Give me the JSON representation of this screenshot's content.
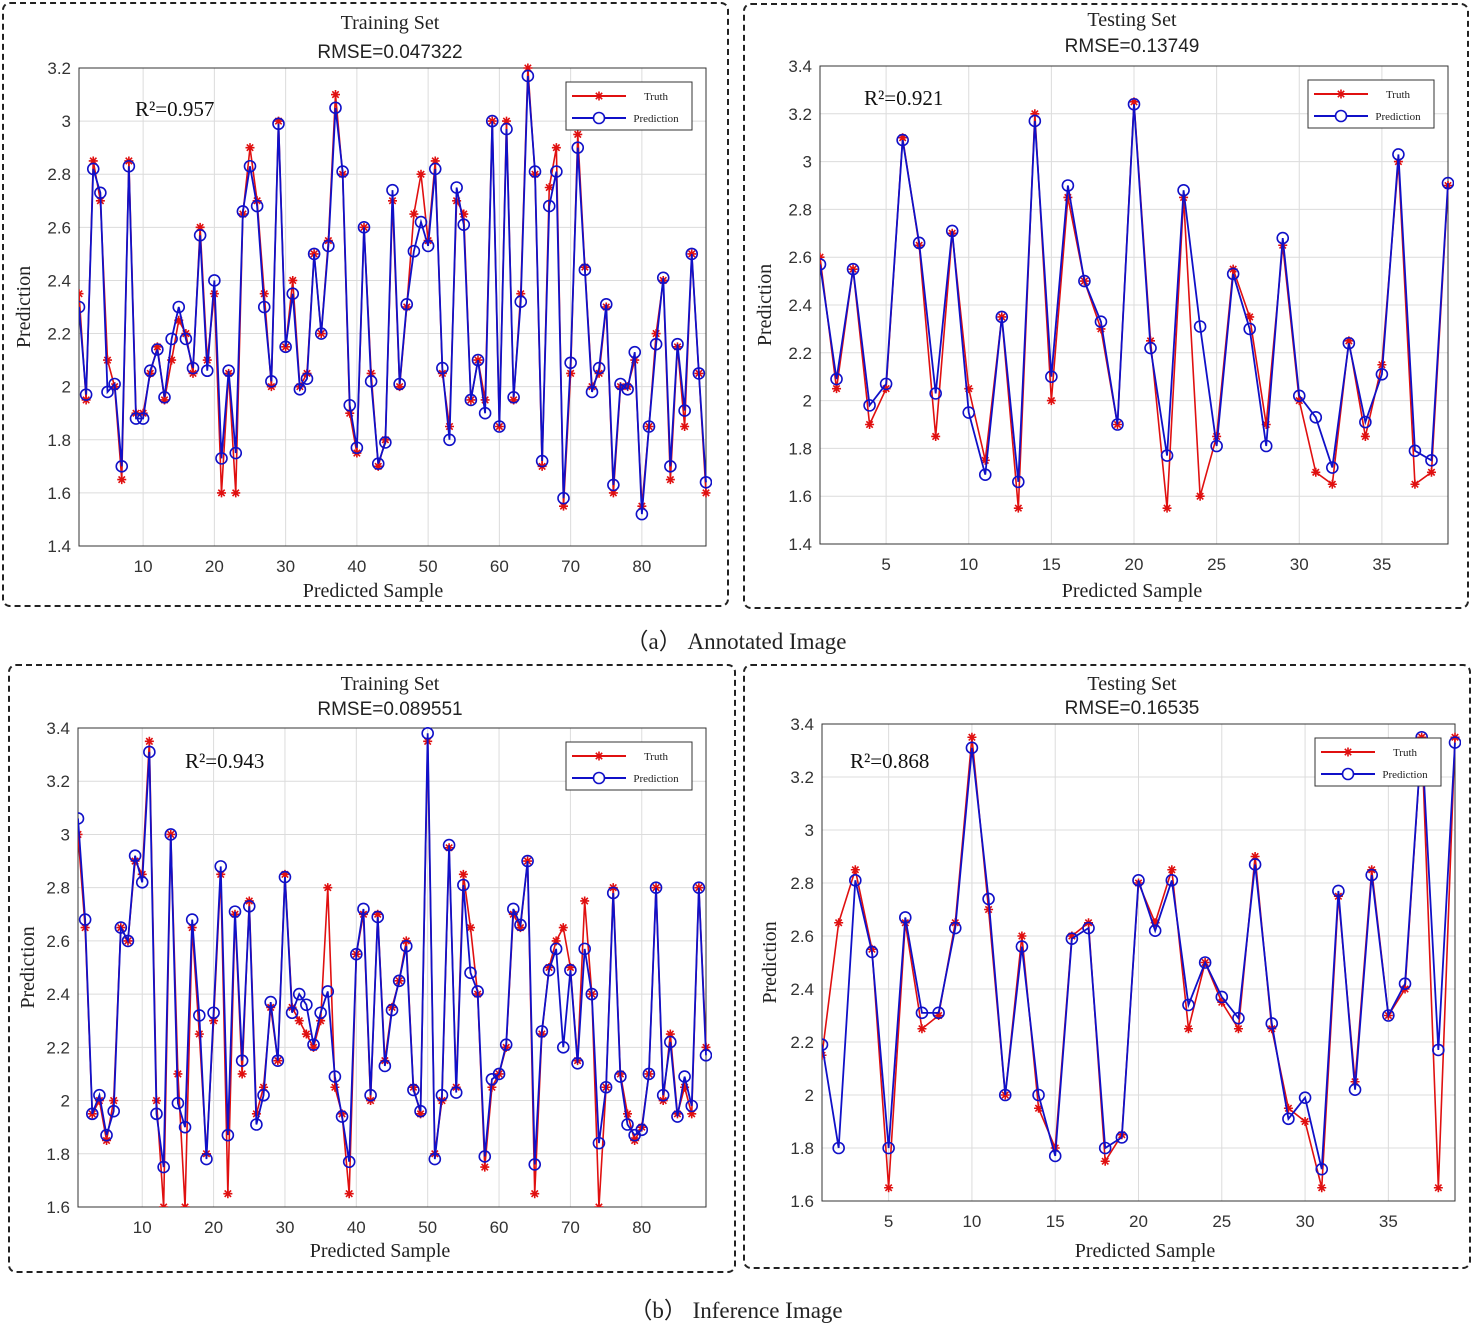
{
  "captions": {
    "a": "（a） Annotated Image",
    "b": "（b） Inference Image"
  },
  "colors": {
    "truth": "#e01010",
    "prediction": "#1010c8",
    "grid": "#dcdcdc"
  },
  "chart_data": [
    {
      "type": "line",
      "title": "Training Set",
      "subtitle": "RMSE=0.047322",
      "annotation": "R²=0.957",
      "xlabel": "Predicted Sample",
      "ylabel": "Prediction",
      "xlim": [
        1,
        89
      ],
      "ylim": [
        1.4,
        3.2
      ],
      "xticks": [
        10,
        20,
        30,
        40,
        50,
        60,
        70,
        80
      ],
      "yticks": [
        1.4,
        1.6,
        1.8,
        2,
        2.2,
        2.4,
        2.6,
        2.8,
        3,
        3.2
      ],
      "grid": true,
      "legend": "top-right",
      "series": [
        {
          "name": "Truth",
          "marker": "star",
          "values": [
            2.35,
            1.95,
            2.85,
            2.7,
            2.1,
            2.0,
            1.65,
            2.85,
            1.9,
            1.9,
            2.05,
            2.15,
            1.95,
            2.1,
            2.25,
            2.2,
            2.05,
            2.6,
            2.1,
            2.35,
            1.6,
            2.05,
            1.6,
            2.65,
            2.9,
            2.7,
            2.35,
            2.0,
            3.0,
            2.15,
            2.4,
            2.0,
            2.05,
            2.5,
            2.2,
            2.55,
            3.1,
            2.8,
            1.9,
            1.75,
            2.6,
            2.05,
            1.7,
            1.8,
            2.7,
            2.0,
            2.3,
            2.65,
            2.8,
            2.55,
            2.85,
            2.05,
            1.85,
            2.7,
            2.65,
            1.95,
            2.1,
            1.95,
            3.0,
            1.85,
            3.0,
            1.95,
            2.35,
            3.2,
            2.8,
            1.7,
            2.75,
            2.9,
            1.55,
            2.05,
            2.95,
            2.45,
            2.0,
            2.05,
            2.3,
            1.6,
            2.0,
            2.0,
            2.1,
            1.55,
            1.85,
            2.2,
            2.4,
            1.65,
            2.15,
            1.85,
            2.5,
            2.05,
            1.6
          ]
        },
        {
          "name": "Prediction",
          "marker": "circle",
          "values": [
            2.3,
            1.97,
            2.82,
            2.73,
            1.98,
            2.01,
            1.7,
            2.83,
            1.88,
            1.88,
            2.06,
            2.14,
            1.96,
            2.18,
            2.3,
            2.18,
            2.07,
            2.57,
            2.06,
            2.4,
            1.73,
            2.06,
            1.75,
            2.66,
            2.83,
            2.68,
            2.3,
            2.02,
            2.99,
            2.15,
            2.35,
            1.99,
            2.03,
            2.5,
            2.2,
            2.53,
            3.05,
            2.81,
            1.93,
            1.77,
            2.6,
            2.02,
            1.71,
            1.79,
            2.74,
            2.01,
            2.31,
            2.51,
            2.62,
            2.53,
            2.82,
            2.07,
            1.8,
            2.75,
            2.61,
            1.95,
            2.1,
            1.9,
            3.0,
            1.85,
            2.97,
            1.96,
            2.32,
            3.17,
            2.81,
            1.72,
            2.68,
            2.81,
            1.58,
            2.09,
            2.9,
            2.44,
            1.98,
            2.07,
            2.31,
            1.63,
            2.01,
            1.99,
            2.13,
            1.52,
            1.85,
            2.16,
            2.41,
            1.7,
            2.16,
            1.91,
            2.5,
            2.05,
            1.64
          ]
        }
      ]
    },
    {
      "type": "line",
      "title": "Testing Set",
      "subtitle": "RMSE=0.13749",
      "annotation": "R²=0.921",
      "xlabel": "Predicted Sample",
      "ylabel": "Prediction",
      "xlim": [
        1,
        39
      ],
      "ylim": [
        1.4,
        3.4
      ],
      "xticks": [
        5,
        10,
        15,
        20,
        25,
        30,
        35
      ],
      "yticks": [
        1.4,
        1.6,
        1.8,
        2,
        2.2,
        2.4,
        2.6,
        2.8,
        3,
        3.2,
        3.4
      ],
      "grid": true,
      "legend": "top-right",
      "series": [
        {
          "name": "Truth",
          "marker": "star",
          "values": [
            2.6,
            2.05,
            2.55,
            1.9,
            2.05,
            3.1,
            2.65,
            1.85,
            2.7,
            2.05,
            1.75,
            2.35,
            1.55,
            3.2,
            2.0,
            2.85,
            2.5,
            2.3,
            1.9,
            3.25,
            2.25,
            1.55,
            2.85,
            1.6,
            1.85,
            2.55,
            2.35,
            1.9,
            2.65,
            2.0,
            1.7,
            1.65,
            2.25,
            1.85,
            2.15,
            3.0,
            1.65,
            1.7,
            2.9
          ]
        },
        {
          "name": "Prediction",
          "marker": "circle",
          "values": [
            2.57,
            2.09,
            2.55,
            1.98,
            2.07,
            3.09,
            2.66,
            2.03,
            2.71,
            1.95,
            1.69,
            2.35,
            1.66,
            3.17,
            2.1,
            2.9,
            2.5,
            2.33,
            1.9,
            3.24,
            2.22,
            1.77,
            2.88,
            2.31,
            1.81,
            2.53,
            2.3,
            1.81,
            2.68,
            2.02,
            1.93,
            1.72,
            2.24,
            1.91,
            2.11,
            3.03,
            1.79,
            1.75,
            2.91
          ]
        }
      ]
    },
    {
      "type": "line",
      "title": "Training Set",
      "subtitle": "RMSE=0.089551",
      "annotation": "R²=0.943",
      "xlabel": "Predicted Sample",
      "ylabel": "Prediction",
      "xlim": [
        1,
        89
      ],
      "ylim": [
        1.6,
        3.4
      ],
      "xticks": [
        10,
        20,
        30,
        40,
        50,
        60,
        70,
        80
      ],
      "yticks": [
        1.6,
        1.8,
        2,
        2.2,
        2.4,
        2.6,
        2.8,
        3,
        3.2,
        3.4
      ],
      "grid": true,
      "legend": "top-right",
      "series": [
        {
          "name": "Truth",
          "marker": "star",
          "values": [
            3.0,
            2.65,
            1.95,
            2.0,
            1.85,
            2.0,
            2.65,
            2.6,
            2.9,
            2.85,
            3.35,
            2.0,
            1.6,
            3.0,
            2.1,
            1.6,
            2.65,
            2.25,
            1.8,
            2.3,
            2.85,
            1.65,
            2.7,
            2.1,
            2.75,
            1.95,
            2.05,
            2.35,
            2.15,
            2.85,
            2.35,
            2.3,
            2.25,
            2.2,
            2.3,
            2.8,
            2.05,
            1.95,
            1.65,
            2.55,
            2.7,
            2.0,
            2.7,
            2.15,
            2.35,
            2.45,
            2.6,
            2.05,
            1.95,
            3.35,
            1.8,
            2.0,
            2.95,
            2.05,
            2.85,
            2.65,
            2.4,
            1.75,
            2.05,
            2.1,
            2.2,
            2.7,
            2.65,
            2.9,
            1.65,
            2.25,
            2.5,
            2.6,
            2.65,
            2.5,
            2.15,
            2.75,
            2.4,
            1.6,
            2.05,
            2.8,
            2.1,
            1.95,
            1.85,
            1.9,
            2.1,
            2.8,
            2.0,
            2.25,
            1.95,
            2.05,
            1.95,
            2.8,
            2.2
          ]
        },
        {
          "name": "Prediction",
          "marker": "circle",
          "values": [
            3.06,
            2.68,
            1.95,
            2.02,
            1.87,
            1.96,
            2.65,
            2.6,
            2.92,
            2.82,
            3.31,
            1.95,
            1.75,
            3.0,
            1.99,
            1.9,
            2.68,
            2.32,
            1.78,
            2.33,
            2.88,
            1.87,
            2.71,
            2.15,
            2.73,
            1.91,
            2.02,
            2.37,
            2.15,
            2.84,
            2.33,
            2.4,
            2.36,
            2.21,
            2.33,
            2.41,
            2.09,
            1.94,
            1.77,
            2.55,
            2.72,
            2.02,
            2.69,
            2.13,
            2.34,
            2.45,
            2.58,
            2.04,
            1.96,
            3.38,
            1.78,
            2.02,
            2.96,
            2.03,
            2.81,
            2.48,
            2.41,
            1.79,
            2.08,
            2.1,
            2.21,
            2.72,
            2.66,
            2.9,
            1.76,
            2.26,
            2.49,
            2.57,
            2.2,
            2.49,
            2.14,
            2.57,
            2.4,
            1.84,
            2.05,
            2.78,
            2.09,
            1.91,
            1.87,
            1.89,
            2.1,
            2.8,
            2.02,
            2.22,
            1.94,
            2.09,
            1.98,
            2.8,
            2.17
          ]
        }
      ]
    },
    {
      "type": "line",
      "title": "Testing Set",
      "subtitle": "RMSE=0.16535",
      "annotation": "R²=0.868",
      "xlabel": "Predicted Sample",
      "ylabel": "Prediction",
      "xlim": [
        1,
        39
      ],
      "ylim": [
        1.6,
        3.4
      ],
      "xticks": [
        5,
        10,
        15,
        20,
        25,
        30,
        35
      ],
      "yticks": [
        1.6,
        1.8,
        2,
        2.2,
        2.4,
        2.6,
        2.8,
        3,
        3.2,
        3.4
      ],
      "grid": true,
      "legend": "top-right",
      "series": [
        {
          "name": "Truth",
          "marker": "star",
          "values": [
            2.15,
            2.65,
            2.85,
            2.55,
            1.65,
            2.65,
            2.25,
            2.3,
            2.65,
            3.35,
            2.7,
            2.0,
            2.6,
            1.95,
            1.8,
            2.6,
            2.65,
            1.75,
            1.85,
            2.8,
            2.65,
            2.85,
            2.25,
            2.5,
            2.35,
            2.25,
            2.9,
            2.25,
            1.95,
            1.9,
            1.65,
            2.75,
            2.05,
            2.85,
            2.3,
            2.4,
            3.35,
            1.65,
            3.35
          ]
        },
        {
          "name": "Prediction",
          "marker": "circle",
          "values": [
            2.19,
            1.8,
            2.81,
            2.54,
            1.8,
            2.67,
            2.31,
            2.31,
            2.63,
            3.31,
            2.74,
            2.0,
            2.56,
            2.0,
            1.77,
            2.59,
            2.63,
            1.8,
            1.84,
            2.81,
            2.62,
            2.81,
            2.34,
            2.5,
            2.37,
            2.29,
            2.87,
            2.27,
            1.91,
            1.99,
            1.72,
            2.77,
            2.02,
            2.83,
            2.3,
            2.42,
            3.35,
            2.17,
            3.33
          ]
        }
      ]
    }
  ]
}
